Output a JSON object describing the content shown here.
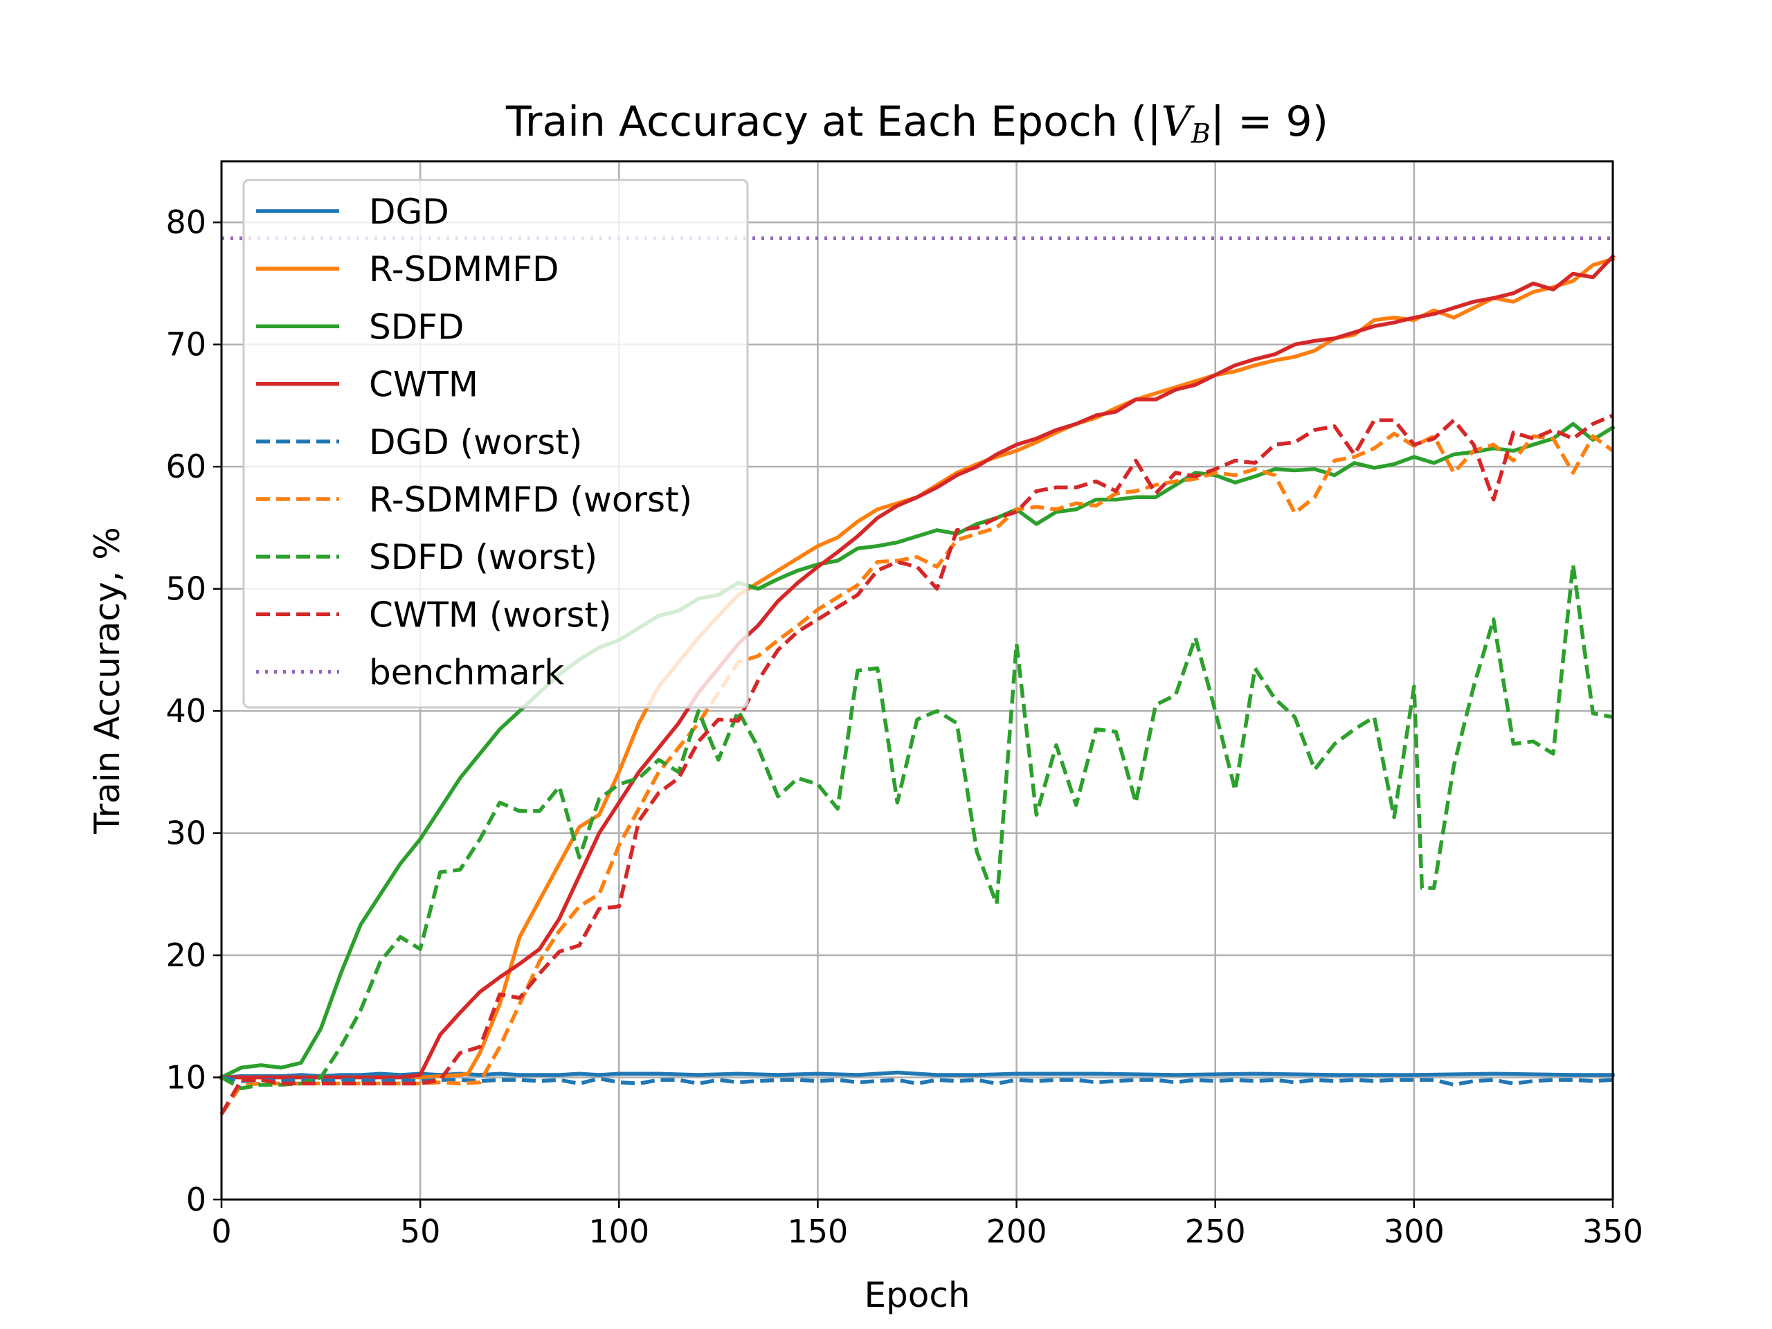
{
  "chart_data": {
    "type": "line",
    "title": {
      "prefix": "Train Accuracy at Each Epoch (|",
      "math_symbol": "V",
      "math_subscript": "B",
      "suffix": "| = 9)"
    },
    "xlabel": "Epoch",
    "ylabel": "Train Accuracy, %",
    "xlim": [
      0,
      350
    ],
    "ylim": [
      0,
      85
    ],
    "xticks": [
      0,
      50,
      100,
      150,
      200,
      250,
      300,
      350
    ],
    "yticks": [
      0,
      10,
      20,
      30,
      40,
      50,
      60,
      70,
      80
    ],
    "grid": true,
    "legend_position": "upper-left",
    "series": [
      {
        "name": "DGD",
        "color": "#1f77b4",
        "style": "solid",
        "x": [
          0,
          5,
          10,
          15,
          20,
          25,
          30,
          35,
          40,
          45,
          50,
          55,
          60,
          65,
          70,
          75,
          80,
          85,
          90,
          95,
          100,
          110,
          120,
          130,
          140,
          150,
          160,
          170,
          180,
          190,
          200,
          220,
          240,
          260,
          280,
          300,
          320,
          340,
          350
        ],
        "y": [
          10,
          10.1,
          10.1,
          10.1,
          10.2,
          10.1,
          10.2,
          10.2,
          10.3,
          10.2,
          10.3,
          10.2,
          10.3,
          10.2,
          10.3,
          10.2,
          10.2,
          10.2,
          10.3,
          10.2,
          10.3,
          10.3,
          10.2,
          10.3,
          10.2,
          10.3,
          10.2,
          10.4,
          10.2,
          10.2,
          10.3,
          10.3,
          10.2,
          10.3,
          10.2,
          10.2,
          10.3,
          10.2,
          10.2
        ]
      },
      {
        "name": "R-SDMMFD",
        "color": "#ff7f0e",
        "style": "solid",
        "x": [
          0,
          5,
          10,
          15,
          20,
          25,
          30,
          35,
          40,
          45,
          50,
          55,
          60,
          62,
          65,
          70,
          75,
          80,
          85,
          90,
          95,
          100,
          105,
          110,
          115,
          120,
          125,
          130,
          135,
          140,
          145,
          150,
          155,
          160,
          165,
          170,
          175,
          180,
          185,
          190,
          195,
          200,
          205,
          210,
          215,
          220,
          225,
          230,
          235,
          240,
          245,
          250,
          255,
          260,
          265,
          270,
          275,
          280,
          285,
          290,
          295,
          300,
          305,
          310,
          315,
          320,
          325,
          330,
          335,
          340,
          345,
          350
        ],
        "y": [
          10,
          10,
          10,
          10,
          10,
          10,
          10,
          10,
          10,
          10,
          10,
          10.1,
          10.2,
          10.3,
          12,
          16,
          21.5,
          24.5,
          27.5,
          30.5,
          31.5,
          35,
          39,
          42,
          44,
          46,
          47.8,
          49.5,
          50.5,
          51.5,
          52.5,
          53.5,
          54.2,
          55.5,
          56.5,
          57,
          57.5,
          58.5,
          59.5,
          60.2,
          60.8,
          61.3,
          62,
          62.8,
          63.5,
          64,
          64.8,
          65.5,
          66,
          66.5,
          67,
          67.5,
          67.8,
          68.3,
          68.7,
          69,
          69.5,
          70.5,
          70.8,
          72,
          72.2,
          72,
          72.8,
          72.2,
          73,
          73.8,
          73.5,
          74.3,
          74.7,
          75.2,
          76.5,
          77
        ]
      },
      {
        "name": "SDFD",
        "color": "#2ca02c",
        "style": "solid",
        "x": [
          0,
          5,
          10,
          15,
          20,
          25,
          30,
          35,
          40,
          45,
          50,
          55,
          60,
          65,
          70,
          75,
          80,
          85,
          90,
          95,
          100,
          105,
          110,
          115,
          120,
          125,
          130,
          135,
          140,
          145,
          150,
          155,
          160,
          165,
          170,
          175,
          180,
          185,
          190,
          195,
          200,
          205,
          210,
          215,
          220,
          225,
          230,
          235,
          240,
          245,
          250,
          255,
          260,
          265,
          270,
          275,
          280,
          285,
          290,
          295,
          300,
          305,
          310,
          315,
          320,
          325,
          330,
          335,
          340,
          345,
          350
        ],
        "y": [
          10,
          10.8,
          11,
          10.8,
          11.2,
          14,
          18.5,
          22.5,
          25,
          27.5,
          29.5,
          32,
          34.5,
          36.5,
          38.5,
          40,
          41.5,
          43,
          44.2,
          45.2,
          45.8,
          46.8,
          47.8,
          48.2,
          49.2,
          49.5,
          50.5,
          50,
          50.8,
          51.5,
          52,
          52.3,
          53.3,
          53.5,
          53.8,
          54.3,
          54.8,
          54.5,
          55.3,
          55.8,
          56.5,
          55.3,
          56.3,
          56.5,
          57.3,
          57.3,
          57.5,
          57.5,
          58.5,
          59.5,
          59.3,
          58.7,
          59.2,
          59.8,
          59.7,
          59.8,
          59.3,
          60.3,
          59.9,
          60.2,
          60.8,
          60.3,
          61,
          61.2,
          61.5,
          61.3,
          61.8,
          62.3,
          63.5,
          62.2,
          63.2
        ]
      },
      {
        "name": "CWTM",
        "color": "#d62728",
        "style": "solid",
        "x": [
          0,
          5,
          10,
          15,
          20,
          25,
          30,
          35,
          40,
          45,
          50,
          55,
          60,
          65,
          70,
          75,
          80,
          85,
          90,
          95,
          100,
          105,
          110,
          115,
          120,
          125,
          130,
          135,
          140,
          145,
          150,
          155,
          160,
          165,
          170,
          175,
          180,
          185,
          190,
          195,
          200,
          205,
          210,
          215,
          220,
          225,
          230,
          235,
          240,
          245,
          250,
          255,
          260,
          265,
          270,
          275,
          280,
          285,
          290,
          295,
          300,
          305,
          310,
          315,
          320,
          325,
          330,
          335,
          340,
          345,
          350
        ],
        "y": [
          10,
          10,
          10,
          10,
          10,
          10,
          10,
          10,
          10,
          10,
          10.2,
          13.5,
          15.3,
          17,
          18.2,
          19.3,
          20.5,
          23,
          26.5,
          30,
          32.5,
          35,
          37,
          39,
          41.5,
          43.5,
          45.5,
          47,
          49,
          50.5,
          51.8,
          53,
          54.3,
          55.8,
          56.8,
          57.5,
          58.3,
          59.3,
          60,
          61,
          61.8,
          62.3,
          63,
          63.5,
          64.2,
          64.5,
          65.5,
          65.5,
          66.3,
          66.7,
          67.5,
          68.3,
          68.8,
          69.2,
          70,
          70.3,
          70.5,
          71,
          71.5,
          71.8,
          72.2,
          72.5,
          73,
          73.5,
          73.8,
          74.2,
          75,
          74.5,
          75.8,
          75.5,
          77.2
        ]
      },
      {
        "name": "DGD (worst)",
        "color": "#1f77b4",
        "style": "dashed",
        "x": [
          0,
          5,
          10,
          15,
          20,
          25,
          30,
          35,
          40,
          45,
          50,
          55,
          60,
          65,
          70,
          75,
          80,
          85,
          90,
          95,
          100,
          105,
          110,
          115,
          120,
          125,
          130,
          135,
          140,
          145,
          150,
          155,
          160,
          165,
          170,
          175,
          180,
          185,
          190,
          195,
          200,
          205,
          210,
          215,
          220,
          225,
          230,
          235,
          240,
          245,
          250,
          255,
          260,
          265,
          270,
          275,
          280,
          285,
          290,
          295,
          300,
          305,
          310,
          315,
          320,
          325,
          330,
          335,
          340,
          345,
          350
        ],
        "y": [
          10,
          9.7,
          9.8,
          9.7,
          9.8,
          9.7,
          9.8,
          9.8,
          9.7,
          9.8,
          9.7,
          9.8,
          9.8,
          9.7,
          9.8,
          9.8,
          9.7,
          9.8,
          9.5,
          9.9,
          9.6,
          9.5,
          9.8,
          9.8,
          9.5,
          9.8,
          9.6,
          9.7,
          9.8,
          9.8,
          9.7,
          9.8,
          9.6,
          9.7,
          9.8,
          9.5,
          9.8,
          9.7,
          9.8,
          9.5,
          9.8,
          9.7,
          9.8,
          9.8,
          9.6,
          9.7,
          9.8,
          9.8,
          9.6,
          9.8,
          9.7,
          9.8,
          9.7,
          9.8,
          9.6,
          9.8,
          9.7,
          9.8,
          9.7,
          9.8,
          9.8,
          9.8,
          9.4,
          9.7,
          9.8,
          9.5,
          9.7,
          9.8,
          9.8,
          9.7,
          9.8
        ]
      },
      {
        "name": "R-SDMMFD (worst)",
        "color": "#ff7f0e",
        "style": "dashed",
        "x": [
          0,
          5,
          10,
          15,
          20,
          25,
          30,
          35,
          40,
          45,
          50,
          55,
          60,
          65,
          70,
          75,
          80,
          85,
          90,
          95,
          100,
          105,
          110,
          115,
          120,
          125,
          130,
          135,
          140,
          145,
          150,
          155,
          160,
          165,
          170,
          175,
          180,
          185,
          190,
          195,
          200,
          205,
          210,
          215,
          220,
          225,
          230,
          235,
          240,
          245,
          250,
          255,
          260,
          265,
          270,
          275,
          280,
          285,
          290,
          295,
          300,
          305,
          310,
          315,
          320,
          325,
          330,
          335,
          340,
          345,
          350
        ],
        "y": [
          7,
          9.4,
          9.5,
          9.5,
          9.5,
          9.5,
          9.5,
          9.5,
          9.5,
          9.5,
          9.5,
          9.6,
          9.5,
          9.6,
          12.5,
          16,
          19.5,
          22,
          24,
          25,
          29,
          32,
          35,
          37,
          39,
          41.5,
          44,
          44.5,
          45.8,
          47,
          48.3,
          49.3,
          50.3,
          52.2,
          52.3,
          52.6,
          51.8,
          54,
          54.5,
          55,
          56.5,
          56.7,
          56.5,
          57,
          56.8,
          57.8,
          58,
          58.5,
          58.8,
          59,
          59.5,
          59.3,
          59.8,
          59.3,
          56.2,
          57.5,
          60.5,
          60.8,
          61.5,
          62.7,
          61.7,
          62.5,
          59.5,
          61.3,
          61.8,
          60.5,
          62.5,
          62.3,
          59.5,
          62.5,
          61.3
        ]
      },
      {
        "name": "SDFD (worst)",
        "color": "#2ca02c",
        "style": "dashed",
        "x": [
          0,
          5,
          10,
          15,
          20,
          25,
          30,
          35,
          40,
          45,
          50,
          55,
          60,
          65,
          70,
          75,
          80,
          85,
          90,
          95,
          100,
          105,
          110,
          115,
          120,
          125,
          130,
          135,
          140,
          145,
          150,
          155,
          160,
          165,
          170,
          175,
          180,
          185,
          190,
          195,
          200,
          205,
          210,
          215,
          220,
          225,
          230,
          235,
          240,
          245,
          250,
          255,
          260,
          265,
          270,
          275,
          280,
          285,
          290,
          295,
          300,
          302,
          305,
          310,
          315,
          320,
          325,
          330,
          335,
          340,
          345,
          350
        ],
        "y": [
          10,
          9.1,
          9.4,
          9.4,
          9.5,
          10,
          12.5,
          15.5,
          19.5,
          21.5,
          20.5,
          26.8,
          27,
          29.5,
          32.5,
          31.8,
          31.8,
          33.8,
          28,
          32.8,
          34,
          34.5,
          36,
          35,
          40,
          36,
          40,
          37,
          33,
          34.5,
          34,
          32,
          43.3,
          43.5,
          32.5,
          39.3,
          40,
          39,
          28.5,
          24.2,
          45.5,
          31.5,
          37.2,
          32.3,
          38.5,
          38.3,
          32.5,
          40.5,
          41.3,
          46,
          40,
          33.5,
          43.5,
          41,
          39.5,
          35.2,
          37.3,
          38.5,
          39.5,
          31.3,
          42,
          25.5,
          25.5,
          35.5,
          42,
          47.5,
          37.3,
          37.5,
          36.5,
          52,
          39.8,
          39.5
        ]
      },
      {
        "name": "CWTM (worst)",
        "color": "#d62728",
        "style": "dashed",
        "x": [
          0,
          5,
          10,
          15,
          20,
          25,
          30,
          35,
          40,
          45,
          50,
          55,
          60,
          65,
          70,
          75,
          80,
          85,
          90,
          95,
          100,
          105,
          110,
          115,
          120,
          125,
          130,
          135,
          140,
          145,
          150,
          155,
          160,
          165,
          170,
          175,
          180,
          185,
          190,
          195,
          200,
          205,
          210,
          215,
          220,
          225,
          230,
          235,
          240,
          245,
          250,
          255,
          260,
          265,
          270,
          275,
          280,
          285,
          290,
          295,
          300,
          305,
          310,
          315,
          320,
          325,
          330,
          335,
          340,
          345,
          350
        ],
        "y": [
          7,
          9.8,
          9.8,
          9.5,
          9.5,
          9.5,
          9.5,
          9.5,
          9.5,
          9.5,
          9.5,
          9.8,
          12,
          12.5,
          16.8,
          16.5,
          18.5,
          20.3,
          20.8,
          23.8,
          24,
          31,
          33.3,
          34.5,
          37.5,
          39.3,
          39.2,
          42.5,
          45,
          46.5,
          47.5,
          48.5,
          49.5,
          51.5,
          52.2,
          51.8,
          50,
          54.8,
          55,
          55.8,
          56.3,
          58,
          58.3,
          58.3,
          58.8,
          58,
          60.5,
          57.8,
          59.5,
          59.2,
          59.8,
          60.5,
          60.3,
          61.8,
          62,
          63,
          63.3,
          61,
          63.8,
          63.8,
          61.8,
          62.3,
          63.8,
          61.8,
          57.3,
          62.8,
          62.3,
          63,
          62.3,
          63.5,
          64.2
        ]
      },
      {
        "name": "benchmark",
        "color": "#9467bd",
        "style": "dotted",
        "x": [
          0,
          350
        ],
        "y": [
          78.7,
          78.7
        ]
      }
    ]
  }
}
